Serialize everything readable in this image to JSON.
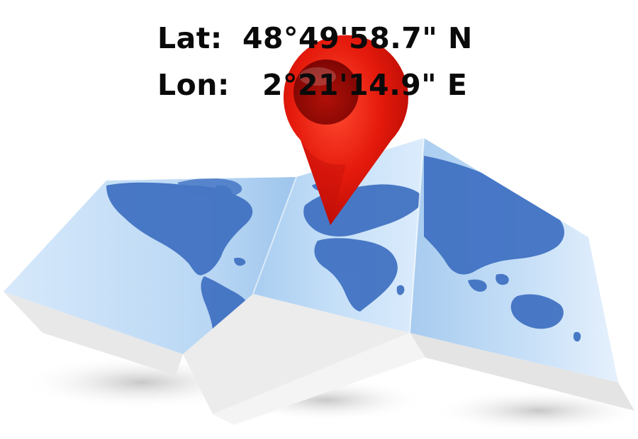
{
  "coordinates": {
    "lat_label": "Lat:",
    "lat_value": "48°49'58.7\" N",
    "lon_label": "Lon:",
    "lon_value": "2°21'14.9\" E"
  },
  "colors": {
    "pin_red": "#e0170c",
    "pin_dark": "#a00806",
    "ocean": "#bcd9f5",
    "land": "#3f72c2",
    "paper_edge": "#efefef",
    "text": "#0a0a0a"
  },
  "icons": {
    "pin": "map-pin-icon",
    "map": "folded-world-map"
  }
}
